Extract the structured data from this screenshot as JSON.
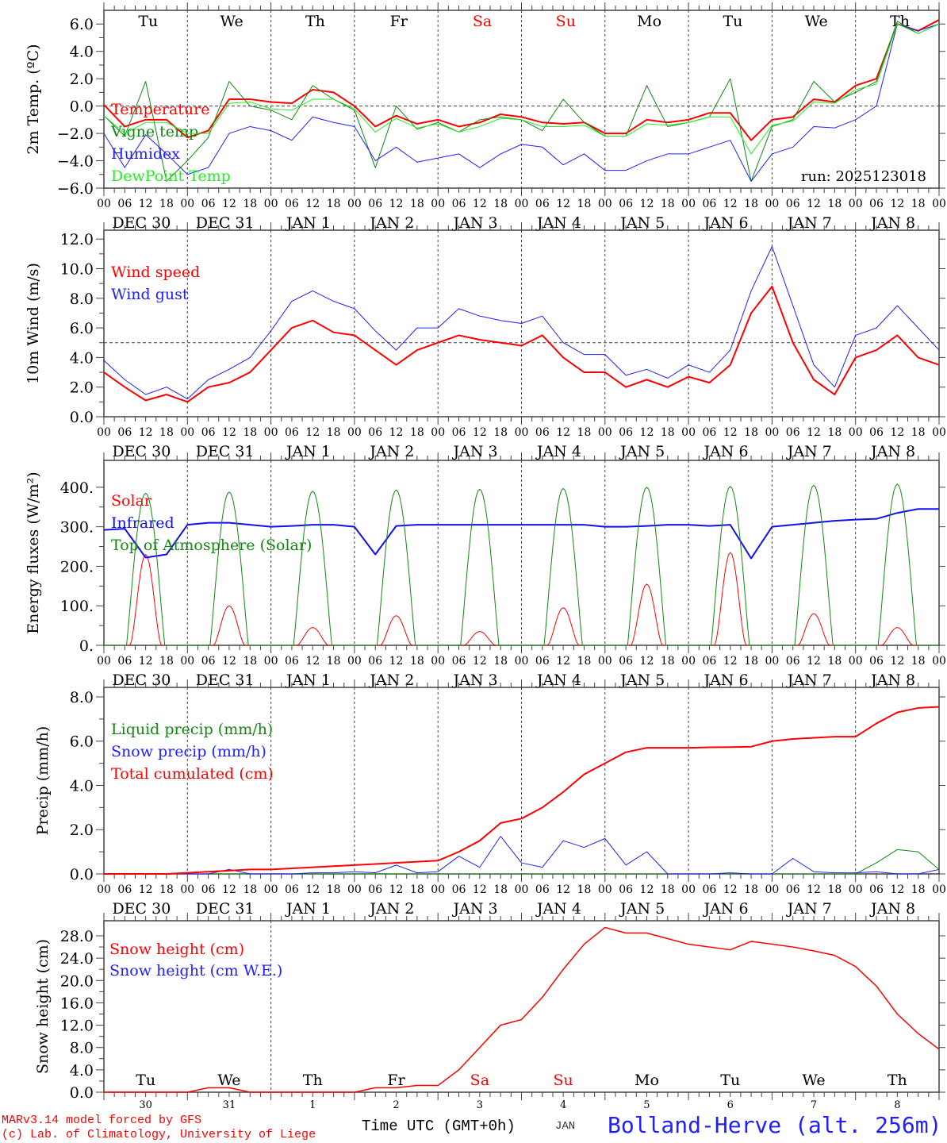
{
  "chart_data": {
    "type": "line",
    "run_label": "run: 2025123018",
    "x_start": "2025-12-30 00 UTC",
    "x_step_hours": 6,
    "hour_labels": [
      "00",
      "06",
      "12",
      "18"
    ],
    "date_labels": [
      "DEC 30",
      "DEC 31",
      "JAN  1",
      "JAN  2",
      "JAN  3",
      "JAN  4",
      "JAN  5",
      "JAN  6",
      "JAN  7",
      "JAN  8"
    ],
    "day_labels": [
      "Tu",
      "We",
      "Th",
      "Fr",
      "Sa",
      "Su",
      "Mo",
      "Tu",
      "We",
      "Th"
    ],
    "weekend_days": [
      4,
      5
    ],
    "day_numbers": [
      "30",
      "31",
      "1",
      "2",
      "3",
      "4",
      "5",
      "6",
      "7",
      "8"
    ],
    "xlabel": "Time UTC (GMT+0h)",
    "xlabel_month": "JAN",
    "panels": [
      {
        "id": "temperature",
        "ylabel": "2m Temp. (ºC)",
        "ylim": [
          -6,
          7
        ],
        "yticks": [
          -6,
          -4,
          -2,
          0,
          2,
          4,
          6
        ],
        "ytick_labels": [
          "−6.0",
          "−4.0",
          "−2.0",
          "0.0",
          "2.0",
          "4.0",
          "6.0"
        ],
        "ref_line": 0,
        "series": [
          {
            "name": "Temperature",
            "color": "#ff0000",
            "width": 2,
            "values": [
              0.1,
              -1.5,
              -1.0,
              -1.0,
              -2.3,
              -1.8,
              0.5,
              0.5,
              0.3,
              0.2,
              1.2,
              1.0,
              0.0,
              -1.5,
              -0.7,
              -1.3,
              -1.0,
              -1.5,
              -1.2,
              -0.6,
              -0.8,
              -1.2,
              -1.3,
              -1.2,
              -2.0,
              -2.0,
              -1.0,
              -1.2,
              -1.0,
              -0.5,
              -0.5,
              -2.5,
              -1.0,
              -0.8,
              0.5,
              0.3,
              1.5,
              2.0,
              6.0,
              5.5,
              6.3
            ]
          },
          {
            "name": "Vigne temp",
            "color": "#118811",
            "width": 1,
            "values": [
              -0.7,
              -2.2,
              1.8,
              -5.5,
              -4.0,
              -2.3,
              1.8,
              0.0,
              -0.3,
              -1.0,
              1.5,
              0.5,
              -0.3,
              -4.5,
              0.0,
              -1.7,
              -1.2,
              -1.9,
              -1.0,
              -0.8,
              -1.0,
              -1.8,
              0.5,
              -1.2,
              -2.2,
              -2.2,
              1.5,
              -1.5,
              -1.2,
              -0.8,
              2.0,
              -5.5,
              -1.5,
              -1.0,
              1.8,
              0.3,
              1.0,
              1.8,
              6.2,
              5.3,
              6.0
            ]
          },
          {
            "name": "Humidex",
            "color": "#2020ff",
            "width": 1,
            "values": [
              -2.0,
              -4.5,
              -2.1,
              -3.5,
              -5.0,
              -4.5,
              -2.0,
              -1.5,
              -1.8,
              -2.5,
              -0.8,
              -1.2,
              -1.5,
              -4.0,
              -3.0,
              -4.1,
              -3.8,
              -3.5,
              -4.5,
              -3.5,
              -2.8,
              -3.0,
              -4.3,
              -3.5,
              -4.7,
              -4.7,
              -4.0,
              -3.5,
              -3.5,
              -3.0,
              -2.5,
              -5.5,
              -3.5,
              -3.0,
              -1.5,
              -1.6,
              -1.0,
              0.0,
              6.0,
              5.5,
              6.0
            ]
          },
          {
            "name": "DewPoint Temp",
            "color": "#22ee22",
            "width": 1,
            "values": [
              -0.7,
              -2.0,
              -1.2,
              -1.2,
              -2.0,
              -2.0,
              0.2,
              0.3,
              -0.2,
              -0.3,
              0.5,
              0.5,
              -0.2,
              -1.9,
              -0.9,
              -1.6,
              -1.3,
              -1.9,
              -1.5,
              -0.9,
              -1.0,
              -1.5,
              -1.5,
              -1.4,
              -2.2,
              -2.2,
              -1.3,
              -1.4,
              -1.2,
              -0.8,
              -0.8,
              -3.5,
              -1.4,
              -1.1,
              0.3,
              0.2,
              1.2,
              1.6,
              6.0,
              5.3,
              6.0
            ]
          }
        ]
      },
      {
        "id": "wind",
        "ylabel": "10m Wind (m/s)",
        "ylim": [
          0,
          12.6
        ],
        "yticks": [
          0,
          2,
          4,
          6,
          8,
          10,
          12
        ],
        "ytick_labels": [
          "0.0",
          "2.0",
          "4.0",
          "6.0",
          "8.0",
          "10.0",
          "12.0"
        ],
        "ref_line": 5,
        "series": [
          {
            "name": "Wind speed",
            "color": "#ff0000",
            "width": 2,
            "values": [
              3.0,
              2.0,
              1.1,
              1.5,
              1.0,
              2.0,
              2.3,
              3.0,
              4.5,
              6.0,
              6.5,
              5.7,
              5.5,
              4.5,
              3.5,
              4.5,
              5.0,
              5.5,
              5.2,
              5.0,
              4.8,
              5.5,
              4.0,
              3.0,
              3.0,
              2.0,
              2.5,
              2.0,
              2.7,
              2.3,
              3.5,
              7.0,
              8.8,
              5.0,
              2.5,
              1.5,
              4.0,
              4.5,
              5.5,
              4.0,
              3.5
            ]
          },
          {
            "name": "Wind gust",
            "color": "#2020ff",
            "width": 1,
            "values": [
              3.8,
              2.5,
              1.5,
              2.0,
              1.2,
              2.5,
              3.2,
              4.0,
              5.8,
              7.8,
              8.5,
              7.8,
              7.3,
              5.8,
              4.5,
              6.0,
              6.0,
              7.3,
              6.8,
              6.5,
              6.3,
              6.8,
              5.0,
              4.2,
              4.2,
              2.8,
              3.2,
              2.6,
              3.5,
              3.0,
              4.5,
              8.5,
              11.5,
              7.5,
              3.5,
              2.0,
              5.5,
              6.0,
              7.5,
              6.0,
              4.5
            ]
          }
        ]
      },
      {
        "id": "energy",
        "ylabel": "Energy fluxes (W/m²)",
        "ylim": [
          0,
          468
        ],
        "yticks": [
          0,
          100,
          200,
          300,
          400
        ],
        "ytick_labels": [
          "0.",
          "100.",
          "200.",
          "300.",
          "400."
        ],
        "series": [
          {
            "name": "Solar",
            "color": "#ff0000",
            "width": 1,
            "daily_peaks": [
              230,
              100,
              45,
              75,
              35,
              95,
              155,
              235,
              80,
              45
            ]
          },
          {
            "name": "Infrared",
            "color": "#1010ee",
            "width": 2,
            "values": [
              292,
              295,
              222,
              230,
              305,
              310,
              310,
              305,
              300,
              302,
              305,
              305,
              300,
              230,
              302,
              305,
              305,
              305,
              305,
              305,
              305,
              305,
              305,
              305,
              300,
              300,
              302,
              305,
              305,
              302,
              305,
              220,
              300,
              305,
              310,
              315,
              318,
              320,
              335,
              345,
              345
            ]
          },
          {
            "name": "Top of Atmosphere (Solar)",
            "color": "#118811",
            "width": 1,
            "daily_peaks": [
              385,
              388,
              390,
              393,
              395,
              397,
              400,
              402,
              405,
              408
            ]
          }
        ]
      },
      {
        "id": "precip",
        "ylabel": "Precip (mm/h)",
        "ylim": [
          0,
          8.43
        ],
        "yticks": [
          0,
          2,
          4,
          6,
          8
        ],
        "ytick_labels": [
          "0.0",
          "2.0",
          "4.0",
          "6.0",
          "8.0"
        ],
        "series": [
          {
            "name": "Liquid precip (mm/h)",
            "color": "#118811",
            "width": 1,
            "values": [
              0,
              0,
              0,
              0,
              0,
              0,
              0,
              0,
              0,
              0,
              0,
              0,
              0,
              0,
              0,
              0,
              0,
              0,
              0,
              0,
              0,
              0,
              0,
              0,
              0,
              0,
              0,
              0,
              0,
              0,
              0,
              0,
              0,
              0,
              0,
              0,
              0,
              0.5,
              1.1,
              1.0,
              0.2
            ]
          },
          {
            "name": "Snow precip (mm/h)",
            "color": "#2020ff",
            "width": 1,
            "values": [
              0,
              0,
              0,
              0,
              0,
              0,
              0.2,
              0,
              0,
              0,
              0.05,
              0.05,
              0.1,
              0.05,
              0.4,
              0.05,
              0.1,
              0.8,
              0.3,
              1.7,
              0.5,
              0.3,
              1.5,
              1.2,
              1.6,
              0.4,
              1.0,
              0,
              0,
              0,
              0.05,
              0,
              0,
              0.7,
              0.1,
              0.05,
              0.05,
              0.1,
              0,
              0,
              0.2
            ]
          },
          {
            "name": "Total cumulated (cm)",
            "color": "#ff0000",
            "width": 2,
            "values": [
              0,
              0,
              0,
              0,
              0.05,
              0.1,
              0.15,
              0.2,
              0.2,
              0.25,
              0.3,
              0.35,
              0.4,
              0.45,
              0.5,
              0.55,
              0.6,
              1.0,
              1.5,
              2.3,
              2.5,
              3.0,
              3.7,
              4.5,
              5.0,
              5.5,
              5.7,
              5.7,
              5.7,
              5.72,
              5.73,
              5.75,
              6.0,
              6.1,
              6.15,
              6.2,
              6.2,
              6.8,
              7.3,
              7.5,
              7.55
            ]
          }
        ]
      },
      {
        "id": "snow",
        "ylabel": "Snow height (cm)",
        "ylim": [
          0,
          30.7
        ],
        "yticks": [
          0,
          4,
          8,
          12,
          16,
          20,
          24,
          28
        ],
        "ytick_labels": [
          "0.0",
          "4.0",
          "8.0",
          "12.0",
          "16.0",
          "20.0",
          "24.0",
          "28.0"
        ],
        "series": [
          {
            "name": "Snow height (cm)",
            "color": "#ff0000",
            "width": 1.5,
            "values": [
              0,
              0,
              0,
              0,
              0,
              0.8,
              0.8,
              0,
              0,
              0,
              0,
              0,
              0,
              0.8,
              0.8,
              1.2,
              1.2,
              4,
              8,
              12,
              13,
              17,
              22,
              26.5,
              29.5,
              28.5,
              28.5,
              27.5,
              26.5,
              26,
              25.5,
              27,
              26.5,
              26,
              25.3,
              24.5,
              22.5,
              19,
              14,
              10.5,
              7.7
            ]
          },
          {
            "name": "Snow height (cm W.E.)",
            "color": "#2020ff",
            "width": 1,
            "values": []
          }
        ]
      }
    ]
  },
  "footer": {
    "credit_1": "MARv3.14 model forced by GFS",
    "credit_2": "(c) Lab. of Climatology, University of Liege",
    "station": "Bolland-Herve (alt. 256m)"
  }
}
